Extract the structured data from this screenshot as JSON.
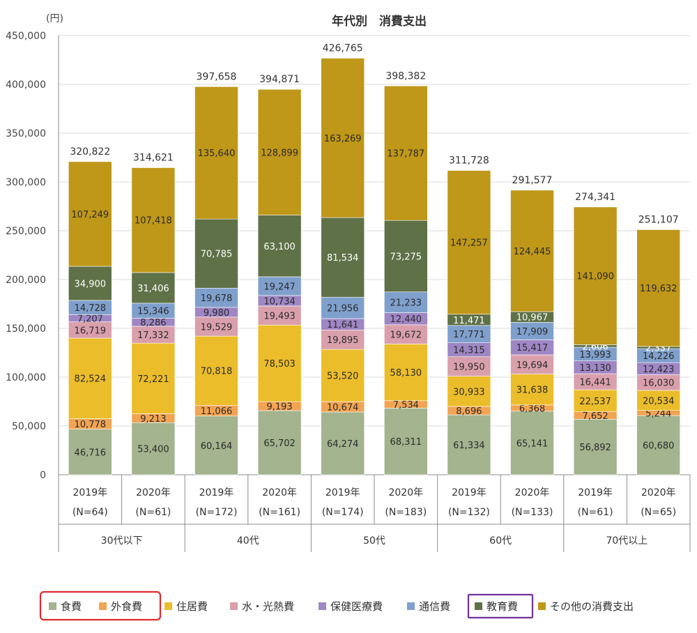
{
  "chart_data": {
    "type": "bar",
    "stacked": true,
    "title": "年代別　消費支出",
    "yunit": "(円)",
    "ylim": [
      0,
      450000
    ],
    "yticks": [
      0,
      50000,
      100000,
      150000,
      200000,
      250000,
      300000,
      350000,
      400000,
      450000
    ],
    "ytick_labels": [
      "0",
      "50,000",
      "100,000",
      "150,000",
      "200,000",
      "250,000",
      "300,000",
      "350,000",
      "400,000",
      "450,000"
    ],
    "groups": [
      "30代以下",
      "40代",
      "50代",
      "60代",
      "70代以上"
    ],
    "categories": [
      {
        "year": "2019年",
        "n": "(N=64)",
        "group": 0
      },
      {
        "year": "2020年",
        "n": "(N=61)",
        "group": 0
      },
      {
        "year": "2019年",
        "n": "(N=172)",
        "group": 1
      },
      {
        "year": "2020年",
        "n": "(N=161)",
        "group": 1
      },
      {
        "year": "2019年",
        "n": "(N=174)",
        "group": 2
      },
      {
        "year": "2020年",
        "n": "(N=183)",
        "group": 2
      },
      {
        "year": "2019年",
        "n": "(N=132)",
        "group": 3
      },
      {
        "year": "2020年",
        "n": "(N=133)",
        "group": 3
      },
      {
        "year": "2019年",
        "n": "(N=61)",
        "group": 4
      },
      {
        "year": "2020年",
        "n": "(N=65)",
        "group": 4
      }
    ],
    "totals": [
      320822,
      314621,
      397658,
      394871,
      426765,
      398382,
      311728,
      291577,
      274341,
      251107
    ],
    "series": [
      {
        "name": "食費",
        "color": "#a3b48e",
        "values": [
          46716,
          53400,
          60164,
          65702,
          64274,
          68311,
          61334,
          65141,
          56892,
          60680
        ]
      },
      {
        "name": "外食費",
        "color": "#f2a453",
        "values": [
          10778,
          9213,
          11066,
          9193,
          10674,
          7534,
          8696,
          6368,
          7652,
          5244
        ]
      },
      {
        "name": "住居費",
        "color": "#ebbd2b",
        "values": [
          82524,
          72221,
          70818,
          78503,
          53520,
          58130,
          30933,
          31638,
          22537,
          20534
        ]
      },
      {
        "name": "水・光熱費",
        "color": "#d9a0ab",
        "values": [
          16719,
          17332,
          19529,
          19493,
          19895,
          19672,
          19950,
          19694,
          16441,
          16030
        ]
      },
      {
        "name": "保健医療費",
        "color": "#9f86c4",
        "values": [
          7207,
          8286,
          9980,
          10734,
          11641,
          12440,
          14315,
          15417,
          13130,
          12423
        ]
      },
      {
        "name": "通信費",
        "color": "#7fa0cc",
        "values": [
          14728,
          15346,
          19678,
          19247,
          21956,
          21233,
          17771,
          17909,
          13993,
          14226
        ]
      },
      {
        "name": "教育費",
        "color": "#5f7147",
        "values": [
          34900,
          31406,
          70785,
          63100,
          81534,
          73275,
          11471,
          10967,
          2606,
          2337
        ]
      },
      {
        "name": "その他の消費支出",
        "color": "#bf9719",
        "values": [
          107249,
          107418,
          135640,
          128899,
          163269,
          137787,
          147257,
          124445,
          141090,
          119632
        ]
      }
    ],
    "legend": {
      "position": "bottom"
    },
    "highlights": [
      {
        "series": [
          "食費",
          "外食費"
        ],
        "color": "#e0282e"
      },
      {
        "series": [
          "教育費"
        ],
        "color": "#7030a0"
      }
    ]
  }
}
